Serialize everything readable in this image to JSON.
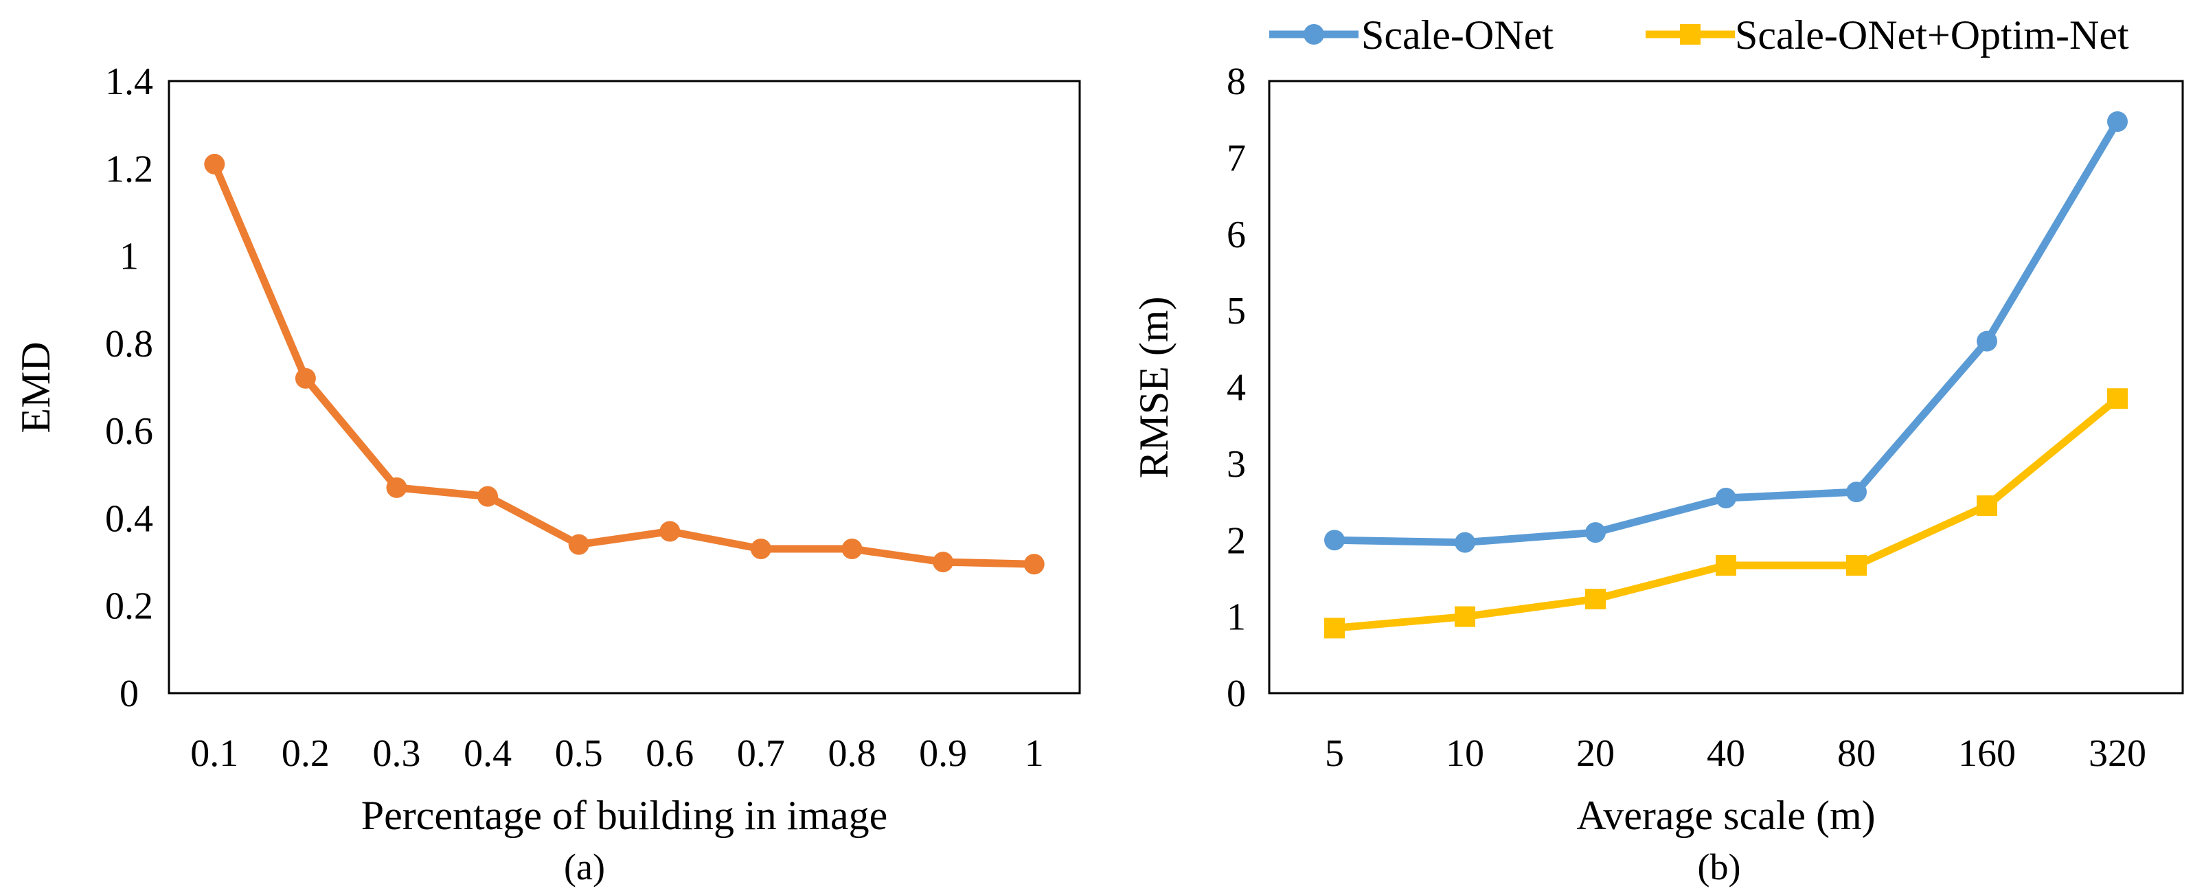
{
  "chart_data": [
    {
      "panel": "(a)",
      "type": "line",
      "title": "",
      "xlabel": "Percentage of building in image",
      "ylabel": "EMD",
      "caption": "(a)",
      "categories": [
        "0.1",
        "0.2",
        "0.3",
        "0.4",
        "0.5",
        "0.6",
        "0.7",
        "0.8",
        "0.9",
        "1"
      ],
      "ylim": [
        0,
        1.4
      ],
      "yticks": [
        "0",
        "0.2",
        "0.4",
        "0.6",
        "0.8",
        "1",
        "1.2",
        "1.4"
      ],
      "grid": false,
      "series": [
        {
          "name": "EMD",
          "color": "#ED7D31",
          "marker": "circle",
          "values": [
            1.21,
            0.72,
            0.47,
            0.45,
            0.34,
            0.37,
            0.33,
            0.33,
            0.3,
            0.295
          ]
        }
      ]
    },
    {
      "panel": "(b)",
      "type": "line",
      "title": "",
      "xlabel": "Average scale (m)",
      "ylabel": "RMSE (m)",
      "caption": "(b)",
      "categories": [
        "5",
        "10",
        "20",
        "40",
        "80",
        "160",
        "320"
      ],
      "ylim": [
        0,
        8
      ],
      "yticks": [
        "0",
        "1",
        "2",
        "3",
        "4",
        "5",
        "6",
        "7",
        "8"
      ],
      "grid": false,
      "legend_position": "top",
      "series": [
        {
          "name": "Scale-ONet",
          "color": "#5B9BD5",
          "marker": "circle",
          "values": [
            2.0,
            1.97,
            2.1,
            2.55,
            2.63,
            4.6,
            7.47
          ]
        },
        {
          "name": "Scale-ONet+Optim-Net",
          "color": "#FFC000",
          "marker": "square",
          "values": [
            0.85,
            1.0,
            1.23,
            1.67,
            1.67,
            2.45,
            3.85
          ]
        }
      ]
    }
  ]
}
